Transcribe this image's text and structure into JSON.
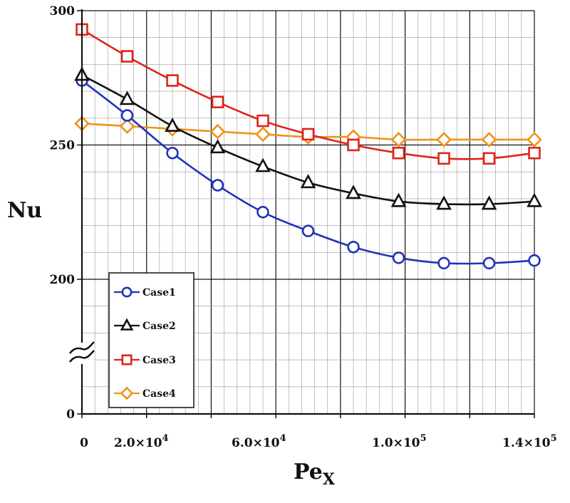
{
  "chart_data": {
    "type": "line",
    "xlabel": "Pe",
    "xlabel_sub": "X",
    "ylabel": "Nu",
    "xlim": [
      0,
      140000
    ],
    "ylim_display": [
      0,
      300
    ],
    "axis_break": "between 0 and 200",
    "grid": true,
    "legend_position": "bottom-left",
    "x_tick_labels": [
      {
        "value": 0,
        "mant": "0",
        "exp": ""
      },
      {
        "value": 20000,
        "mant": "2.0×10",
        "exp": "4"
      },
      {
        "value": 60000,
        "mant": "6.0×10",
        "exp": "4"
      },
      {
        "value": 100000,
        "mant": "1.0×10",
        "exp": "5"
      },
      {
        "value": 140000,
        "mant": "1.4×10",
        "exp": "5"
      }
    ],
    "y_tick_labels": [
      "0",
      "200",
      "250",
      "300"
    ],
    "x": [
      0,
      14000,
      28000,
      42000,
      56000,
      70000,
      84000,
      98000,
      112000,
      126000,
      140000
    ],
    "series": [
      {
        "name": "Case1",
        "color": "#1f33b8",
        "marker": "circle",
        "values": [
          274,
          261,
          247,
          235,
          225,
          218,
          212,
          208,
          206,
          206,
          207
        ]
      },
      {
        "name": "Case2",
        "color": "#111111",
        "marker": "triangle",
        "values": [
          276,
          267,
          257,
          249,
          242,
          236,
          232,
          229,
          228,
          228,
          229
        ]
      },
      {
        "name": "Case3",
        "color": "#e0241b",
        "marker": "square",
        "values": [
          293,
          283,
          274,
          266,
          259,
          254,
          250,
          247,
          245,
          245,
          247
        ]
      },
      {
        "name": "Case4",
        "color": "#f0921b",
        "marker": "diamond",
        "values": [
          258,
          257,
          256,
          255,
          254,
          253,
          253,
          252,
          252,
          252,
          252
        ]
      }
    ]
  }
}
